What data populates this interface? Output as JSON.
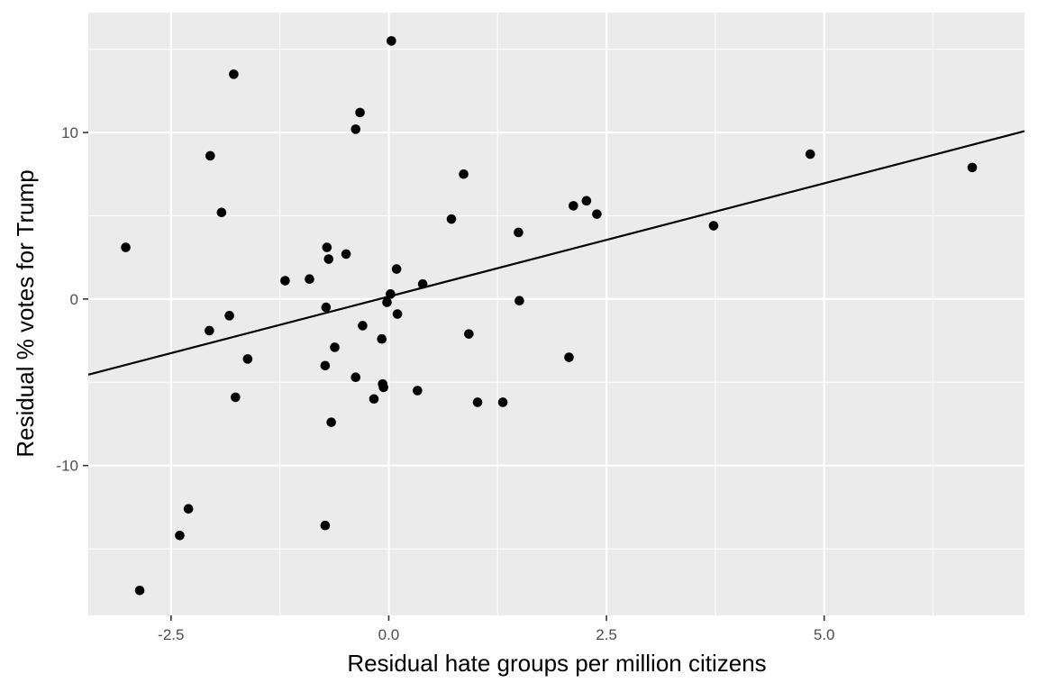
{
  "chart_data": {
    "type": "scatter",
    "title": "",
    "xlabel": "Residual hate groups per million citizens",
    "ylabel": "Residual % votes for Trump",
    "xlim": [
      -3.45,
      7.3
    ],
    "ylim": [
      -19.0,
      17.2
    ],
    "x_ticks": [
      {
        "value": -2.5,
        "label": "-2.5"
      },
      {
        "value": 0.0,
        "label": "0.0"
      },
      {
        "value": 2.5,
        "label": "2.5"
      },
      {
        "value": 5.0,
        "label": "5.0"
      }
    ],
    "x_minor_ticks": [
      -1.25,
      1.25,
      3.75,
      6.25
    ],
    "y_ticks": [
      {
        "value": -10,
        "label": "-10"
      },
      {
        "value": 0,
        "label": "0"
      },
      {
        "value": 10,
        "label": "10"
      }
    ],
    "y_minor_ticks": [
      -15,
      -5,
      5,
      15
    ],
    "grid": true,
    "colors": {
      "panel_background": "#ebebeb",
      "grid_line": "#ffffff",
      "point": "#000000",
      "fit_line": "#000000"
    },
    "fit_line": {
      "intercept": 0.15,
      "slope": 1.36
    },
    "points": [
      {
        "x": 0.03,
        "y": 15.5
      },
      {
        "x": -1.78,
        "y": 13.5
      },
      {
        "x": -0.33,
        "y": 11.2
      },
      {
        "x": -0.38,
        "y": 10.2
      },
      {
        "x": -2.05,
        "y": 8.6
      },
      {
        "x": 0.86,
        "y": 7.5
      },
      {
        "x": 4.84,
        "y": 8.7
      },
      {
        "x": 6.7,
        "y": 7.9
      },
      {
        "x": 2.27,
        "y": 5.9
      },
      {
        "x": 2.12,
        "y": 5.6
      },
      {
        "x": 2.39,
        "y": 5.1
      },
      {
        "x": -1.92,
        "y": 5.2
      },
      {
        "x": 0.72,
        "y": 4.8
      },
      {
        "x": 3.73,
        "y": 4.4
      },
      {
        "x": 1.49,
        "y": 4.0
      },
      {
        "x": -3.02,
        "y": 3.1
      },
      {
        "x": -0.71,
        "y": 3.1
      },
      {
        "x": -0.49,
        "y": 2.7
      },
      {
        "x": -0.69,
        "y": 2.4
      },
      {
        "x": 0.09,
        "y": 1.8
      },
      {
        "x": -1.19,
        "y": 1.1
      },
      {
        "x": -0.91,
        "y": 1.2
      },
      {
        "x": 0.39,
        "y": 0.9
      },
      {
        "x": 0.02,
        "y": 0.3
      },
      {
        "x": -0.02,
        "y": -0.2
      },
      {
        "x": 1.5,
        "y": -0.1
      },
      {
        "x": -0.72,
        "y": -0.5
      },
      {
        "x": -1.83,
        "y": -1.0
      },
      {
        "x": 0.1,
        "y": -0.9
      },
      {
        "x": -2.06,
        "y": -1.9
      },
      {
        "x": -0.3,
        "y": -1.6
      },
      {
        "x": 0.92,
        "y": -2.1
      },
      {
        "x": -0.08,
        "y": -2.4
      },
      {
        "x": -0.62,
        "y": -2.9
      },
      {
        "x": -1.62,
        "y": -3.6
      },
      {
        "x": 2.07,
        "y": -3.5
      },
      {
        "x": -0.73,
        "y": -4.0
      },
      {
        "x": -0.38,
        "y": -4.7
      },
      {
        "x": -0.07,
        "y": -5.1
      },
      {
        "x": -0.06,
        "y": -5.3
      },
      {
        "x": 0.33,
        "y": -5.5
      },
      {
        "x": -1.76,
        "y": -5.9
      },
      {
        "x": -0.17,
        "y": -6.0
      },
      {
        "x": 1.02,
        "y": -6.2
      },
      {
        "x": 1.31,
        "y": -6.2
      },
      {
        "x": -0.66,
        "y": -7.4
      },
      {
        "x": -2.3,
        "y": -12.6
      },
      {
        "x": -2.4,
        "y": -14.2
      },
      {
        "x": -0.73,
        "y": -13.6
      },
      {
        "x": -2.86,
        "y": -17.5
      }
    ]
  }
}
